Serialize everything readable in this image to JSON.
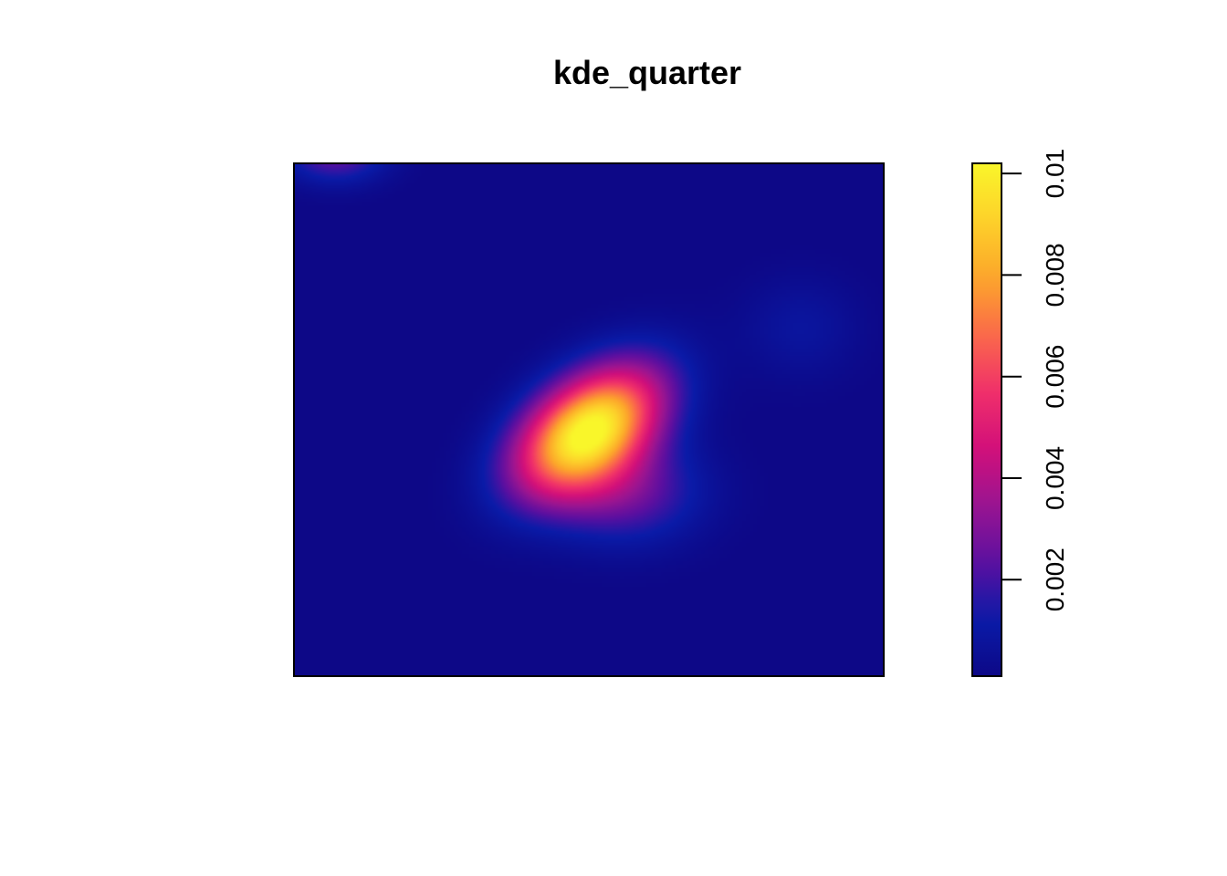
{
  "chart_data": {
    "type": "heatmap",
    "title": "kde_quarter",
    "xlabel": "",
    "ylabel": "",
    "axes_shown": false,
    "legend": {
      "type": "colorbar",
      "placement": "right",
      "range": [
        0.0001,
        0.0102
      ],
      "ticks": [
        0.002,
        0.004,
        0.006,
        0.008,
        0.01
      ],
      "tick_labels": [
        "0.002",
        "0.004",
        "0.006",
        "0.008",
        "0.01"
      ]
    },
    "colormap": [
      "#0d0887",
      "#0a1ba8",
      "#5c0fa0",
      "#9a1591",
      "#d20f7a",
      "#f0306a",
      "#fb6a4a",
      "#fca72a",
      "#fdd12a",
      "#f9f62a"
    ],
    "background_color": "#030a7e",
    "density_components": [
      {
        "cx": 0.5,
        "cy": 0.52,
        "sx": 0.085,
        "sy": 0.085,
        "rho": -0.45,
        "peak": 0.0102
      },
      {
        "cx": 0.56,
        "cy": 0.64,
        "sx": 0.09,
        "sy": 0.07,
        "rho": 0.0,
        "peak": 0.0025
      },
      {
        "cx": 0.86,
        "cy": 0.32,
        "sx": 0.07,
        "sy": 0.07,
        "rho": 0.0,
        "peak": 0.0008
      },
      {
        "cx": 0.07,
        "cy": -0.02,
        "sx": 0.06,
        "sy": 0.04,
        "rho": 0.0,
        "peak": 0.0025
      }
    ]
  }
}
